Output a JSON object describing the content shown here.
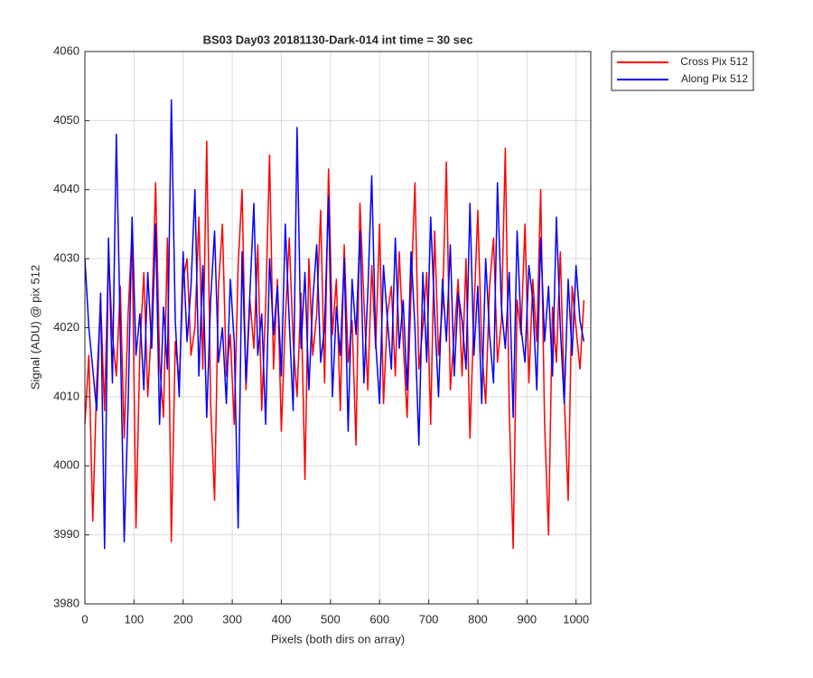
{
  "chart_data": {
    "type": "line",
    "title": "BS03 Day03 20181130-Dark-014 int time = 30 sec",
    "xlabel": "Pixels (both dirs on array)",
    "ylabel": "Signal (ADU) @ pix 512",
    "x": [
      0,
      8,
      16,
      24,
      32,
      40,
      48,
      56,
      64,
      72,
      80,
      88,
      96,
      104,
      112,
      120,
      128,
      136,
      144,
      152,
      160,
      168,
      176,
      184,
      192,
      200,
      208,
      216,
      224,
      232,
      240,
      248,
      256,
      264,
      272,
      280,
      288,
      296,
      304,
      312,
      320,
      328,
      336,
      344,
      352,
      360,
      368,
      376,
      384,
      392,
      400,
      408,
      416,
      424,
      432,
      440,
      448,
      456,
      464,
      472,
      480,
      488,
      496,
      504,
      512,
      520,
      528,
      536,
      544,
      552,
      560,
      568,
      576,
      584,
      592,
      600,
      608,
      616,
      624,
      632,
      640,
      648,
      656,
      664,
      672,
      680,
      688,
      696,
      704,
      712,
      720,
      728,
      736,
      744,
      752,
      760,
      768,
      776,
      784,
      792,
      800,
      808,
      816,
      824,
      832,
      840,
      848,
      856,
      864,
      872,
      880,
      888,
      896,
      904,
      912,
      920,
      928,
      936,
      944,
      952,
      960,
      968,
      976,
      984,
      992,
      1000,
      1008,
      1016
    ],
    "series": [
      {
        "name": "Cross Pix 512",
        "color": "#ff0000",
        "values": [
          4006,
          4016,
          3992,
          4012,
          4024,
          4008,
          4031,
          4019,
          4013,
          4026,
          4004,
          4022,
          4034,
          3991,
          4017,
          4028,
          4010,
          4021,
          4041,
          4015,
          4007,
          4033,
          3989,
          4018,
          4012,
          4027,
          4030,
          4016,
          4020,
          4036,
          4014,
          4047,
          4009,
          3995,
          4026,
          4035,
          4013,
          4019,
          4006,
          4029,
          4040,
          4011,
          4024,
          4017,
          4032,
          4008,
          4023,
          4045,
          4014,
          4027,
          4005,
          4021,
          4033,
          4018,
          4010,
          4025,
          3998,
          4030,
          4016,
          4022,
          4037,
          4012,
          4043,
          4019,
          4027,
          4008,
          4032,
          4015,
          4021,
          4003,
          4038,
          4024,
          4011,
          4029,
          4017,
          4035,
          4009,
          4022,
          4026,
          4013,
          4031,
          4018,
          4007,
          4025,
          4041,
          4014,
          4020,
          4028,
          4006,
          4034,
          4016,
          4023,
          4044,
          4011,
          4019,
          4027,
          4013,
          4030,
          4004,
          4022,
          4037,
          4017,
          4009,
          4026,
          4033,
          4015,
          4021,
          4046,
          4008,
          3988,
          4024,
          4019,
          4035,
          4012,
          4027,
          4018,
          4040,
          4006,
          3990,
          4023,
          4015,
          4031,
          4010,
          3995,
          4026,
          4020,
          4014,
          4024
        ]
      },
      {
        "name": "Along Pix 512",
        "color": "#0000ff",
        "values": [
          4030,
          4020,
          4014,
          4008,
          4025,
          3988,
          4033,
          4012,
          4048,
          4019,
          3989,
          4009,
          4036,
          4016,
          4022,
          4011,
          4028,
          4017,
          4035,
          4006,
          4023,
          4014,
          4053,
          4021,
          4010,
          4031,
          4018,
          4026,
          4040,
          4013,
          4029,
          4007,
          4024,
          4034,
          4015,
          4020,
          4009,
          4027,
          4018,
          3991,
          4031,
          4012,
          4025,
          4038,
          4016,
          4022,
          4006,
          4030,
          4019,
          4026,
          4013,
          4035,
          4021,
          4008,
          4049,
          4017,
          4028,
          4011,
          4024,
          4032,
          4015,
          4020,
          4039,
          4010,
          4023,
          4016,
          4030,
          4005,
          4027,
          4019,
          4034,
          4012,
          4025,
          4042,
          4018,
          4009,
          4029,
          4021,
          4014,
          4033,
          4017,
          4024,
          4011,
          4031,
          4020,
          4003,
          4028,
          4015,
          4036,
          4022,
          4010,
          4027,
          4018,
          4032,
          4013,
          4025,
          4021,
          4014,
          4038,
          4016,
          4026,
          4009,
          4030,
          4019,
          4012,
          4041,
          4023,
          4017,
          4028,
          4007,
          4034,
          4020,
          4015,
          4029,
          4024,
          4011,
          4033,
          4018,
          4026,
          4013,
          4036,
          4020,
          4009,
          4027,
          4016,
          4029,
          4021,
          4018
        ]
      }
    ],
    "xlim": [
      0,
      1030
    ],
    "xticks": [
      0,
      100,
      200,
      300,
      400,
      500,
      600,
      700,
      800,
      900,
      1000
    ],
    "ylim": [
      3980,
      4060
    ],
    "yticks": [
      3980,
      3990,
      4000,
      4010,
      4020,
      4030,
      4040,
      4050,
      4060
    ],
    "grid": true,
    "legend": "outside-northeast"
  }
}
